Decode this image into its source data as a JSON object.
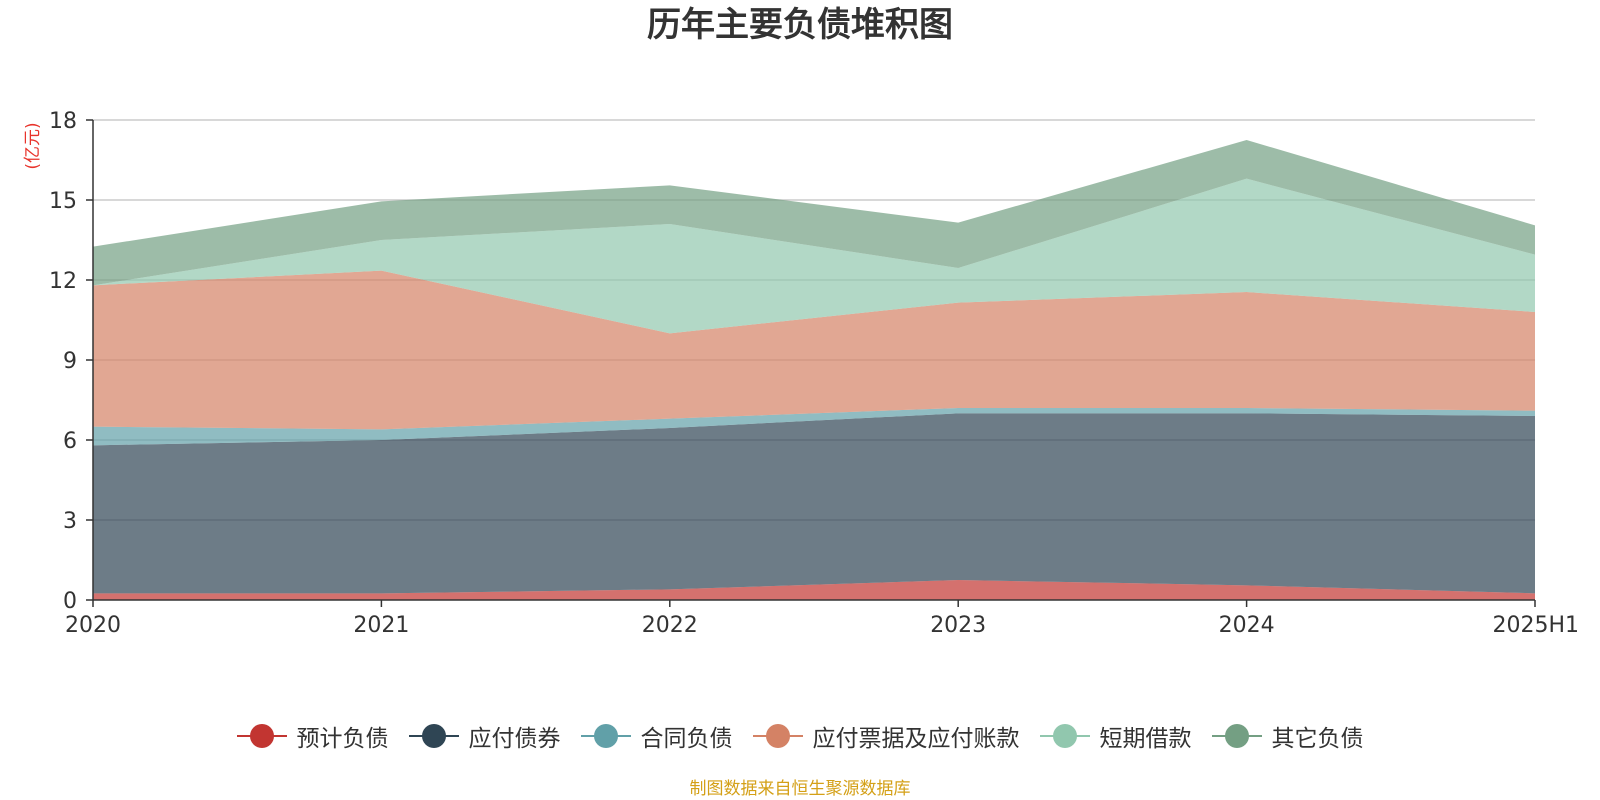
{
  "chart_data": {
    "type": "area",
    "stacked": true,
    "title": "历年主要负债堆积图",
    "unit_label": "(亿元)",
    "categories": [
      "2020",
      "2021",
      "2022",
      "2023",
      "2024",
      "2025H1"
    ],
    "ylim": [
      0,
      18
    ],
    "yticks": [
      0,
      3,
      6,
      9,
      12,
      15,
      18
    ],
    "ytick_labels": [
      "0",
      "3",
      "6",
      "9",
      "12",
      "15",
      "18"
    ],
    "grid": true,
    "legend_position": "bottom",
    "series": [
      {
        "name": "预计负债",
        "color": "#c23531",
        "values": [
          0.25,
          0.25,
          0.4,
          0.75,
          0.55,
          0.25
        ]
      },
      {
        "name": "应付债券",
        "color": "#2f4554",
        "values": [
          5.55,
          5.75,
          6.05,
          6.25,
          6.45,
          6.65
        ]
      },
      {
        "name": "合同负债",
        "color": "#61a0a8",
        "values": [
          0.7,
          0.4,
          0.35,
          0.2,
          0.2,
          0.2
        ]
      },
      {
        "name": "应付票据及应付账款",
        "color": "#d48265",
        "values": [
          5.3,
          5.95,
          3.2,
          3.95,
          4.35,
          3.7
        ]
      },
      {
        "name": "短期借款",
        "color": "#91c7ae",
        "values": [
          0.0,
          1.15,
          4.1,
          1.3,
          4.25,
          2.15
        ]
      },
      {
        "name": "其它负债",
        "color": "#749f83",
        "values": [
          1.45,
          1.45,
          1.45,
          1.7,
          1.45,
          1.1
        ]
      }
    ]
  },
  "source_note": "制图数据来自恒生聚源数据库"
}
